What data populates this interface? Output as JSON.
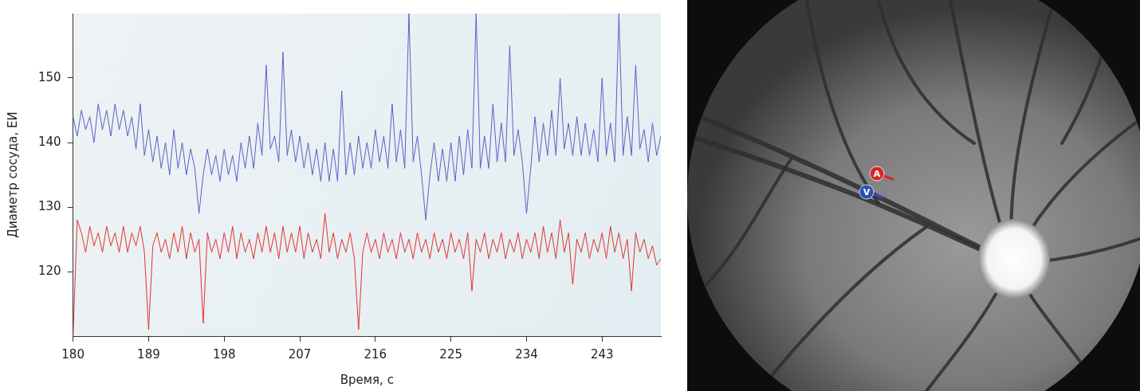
{
  "chart_data": {
    "type": "line",
    "x_label": "Время, с",
    "y_label": "Диаметр сосуда, ЕИ",
    "xlim": [
      180,
      250
    ],
    "ylim": [
      110,
      160
    ],
    "xticks": [
      180,
      189,
      198,
      207,
      216,
      225,
      234,
      243
    ],
    "yticks": [
      120,
      130,
      140,
      150
    ],
    "grid": false,
    "x": [
      180,
      180.5,
      181,
      181.5,
      182,
      182.5,
      183,
      183.5,
      184,
      184.5,
      185,
      185.5,
      186,
      186.5,
      187,
      187.5,
      188,
      188.5,
      189,
      189.5,
      190,
      190.5,
      191,
      191.5,
      192,
      192.5,
      193,
      193.5,
      194,
      194.5,
      195,
      195.5,
      196,
      196.5,
      197,
      197.5,
      198,
      198.5,
      199,
      199.5,
      200,
      200.5,
      201,
      201.5,
      202,
      202.5,
      203,
      203.5,
      204,
      204.5,
      205,
      205.5,
      206,
      206.5,
      207,
      207.5,
      208,
      208.5,
      209,
      209.5,
      210,
      210.5,
      211,
      211.5,
      212,
      212.5,
      213,
      213.5,
      214,
      214.5,
      215,
      215.5,
      216,
      216.5,
      217,
      217.5,
      218,
      218.5,
      219,
      219.5,
      220,
      220.5,
      221,
      221.5,
      222,
      222.5,
      223,
      223.5,
      224,
      224.5,
      225,
      225.5,
      226,
      226.5,
      227,
      227.5,
      228,
      228.5,
      229,
      229.5,
      230,
      230.5,
      231,
      231.5,
      232,
      232.5,
      233,
      233.5,
      234,
      234.5,
      235,
      235.5,
      236,
      236.5,
      237,
      237.5,
      238,
      238.5,
      239,
      239.5,
      240,
      240.5,
      241,
      241.5,
      242,
      242.5,
      243,
      243.5,
      244,
      244.5,
      245,
      245.5,
      246,
      246.5,
      247,
      247.5,
      248,
      248.5,
      249,
      249.5,
      250
    ],
    "series": [
      {
        "color": "#5b5fc7",
        "values": [
          144,
          141,
          145,
          142,
          144,
          140,
          146,
          142,
          145,
          141,
          146,
          142,
          145,
          141,
          144,
          139,
          146,
          138,
          142,
          137,
          141,
          136,
          140,
          135,
          142,
          136,
          140,
          135,
          139,
          136,
          129,
          135,
          139,
          135,
          138,
          134,
          139,
          135,
          138,
          134,
          140,
          136,
          141,
          136,
          143,
          138,
          152,
          139,
          141,
          137,
          154,
          138,
          142,
          137,
          141,
          136,
          140,
          135,
          139,
          134,
          140,
          134,
          139,
          134,
          148,
          135,
          140,
          135,
          141,
          136,
          140,
          136,
          142,
          137,
          141,
          136,
          146,
          137,
          142,
          136,
          160,
          137,
          141,
          135,
          128,
          135,
          140,
          134,
          139,
          134,
          140,
          134,
          141,
          135,
          142,
          136,
          160,
          136,
          141,
          136,
          146,
          137,
          143,
          137,
          155,
          138,
          142,
          137,
          129,
          136,
          144,
          137,
          143,
          138,
          145,
          138,
          150,
          139,
          143,
          138,
          144,
          138,
          143,
          138,
          142,
          137,
          150,
          138,
          143,
          137,
          160,
          138,
          144,
          138,
          152,
          139,
          142,
          137,
          143,
          138,
          141
        ]
      },
      {
        "color": "#e3322f",
        "values": [
          110,
          128,
          126,
          123,
          127,
          124,
          126,
          123,
          127,
          124,
          126,
          123,
          127,
          123,
          126,
          124,
          127,
          123,
          111,
          124,
          126,
          123,
          125,
          122,
          126,
          123,
          127,
          122,
          126,
          123,
          125,
          112,
          126,
          123,
          125,
          122,
          126,
          123,
          127,
          122,
          126,
          123,
          125,
          122,
          126,
          123,
          127,
          123,
          126,
          122,
          127,
          123,
          126,
          123,
          127,
          122,
          126,
          123,
          125,
          122,
          129,
          123,
          126,
          122,
          125,
          123,
          126,
          122,
          111,
          123,
          126,
          123,
          125,
          122,
          126,
          123,
          125,
          122,
          126,
          123,
          125,
          122,
          126,
          123,
          125,
          122,
          126,
          123,
          125,
          122,
          126,
          123,
          125,
          122,
          126,
          117,
          125,
          123,
          126,
          122,
          125,
          123,
          126,
          122,
          125,
          123,
          126,
          122,
          125,
          123,
          126,
          122,
          127,
          123,
          126,
          122,
          128,
          123,
          126,
          118,
          125,
          123,
          126,
          122,
          125,
          123,
          126,
          122,
          127,
          123,
          126,
          122,
          125,
          117,
          126,
          123,
          125,
          122,
          124,
          121,
          122
        ]
      }
    ]
  },
  "image": {
    "markers": [
      {
        "label": "A",
        "color": "#d7262b"
      },
      {
        "label": "V",
        "color": "#2b4fb4"
      }
    ]
  }
}
